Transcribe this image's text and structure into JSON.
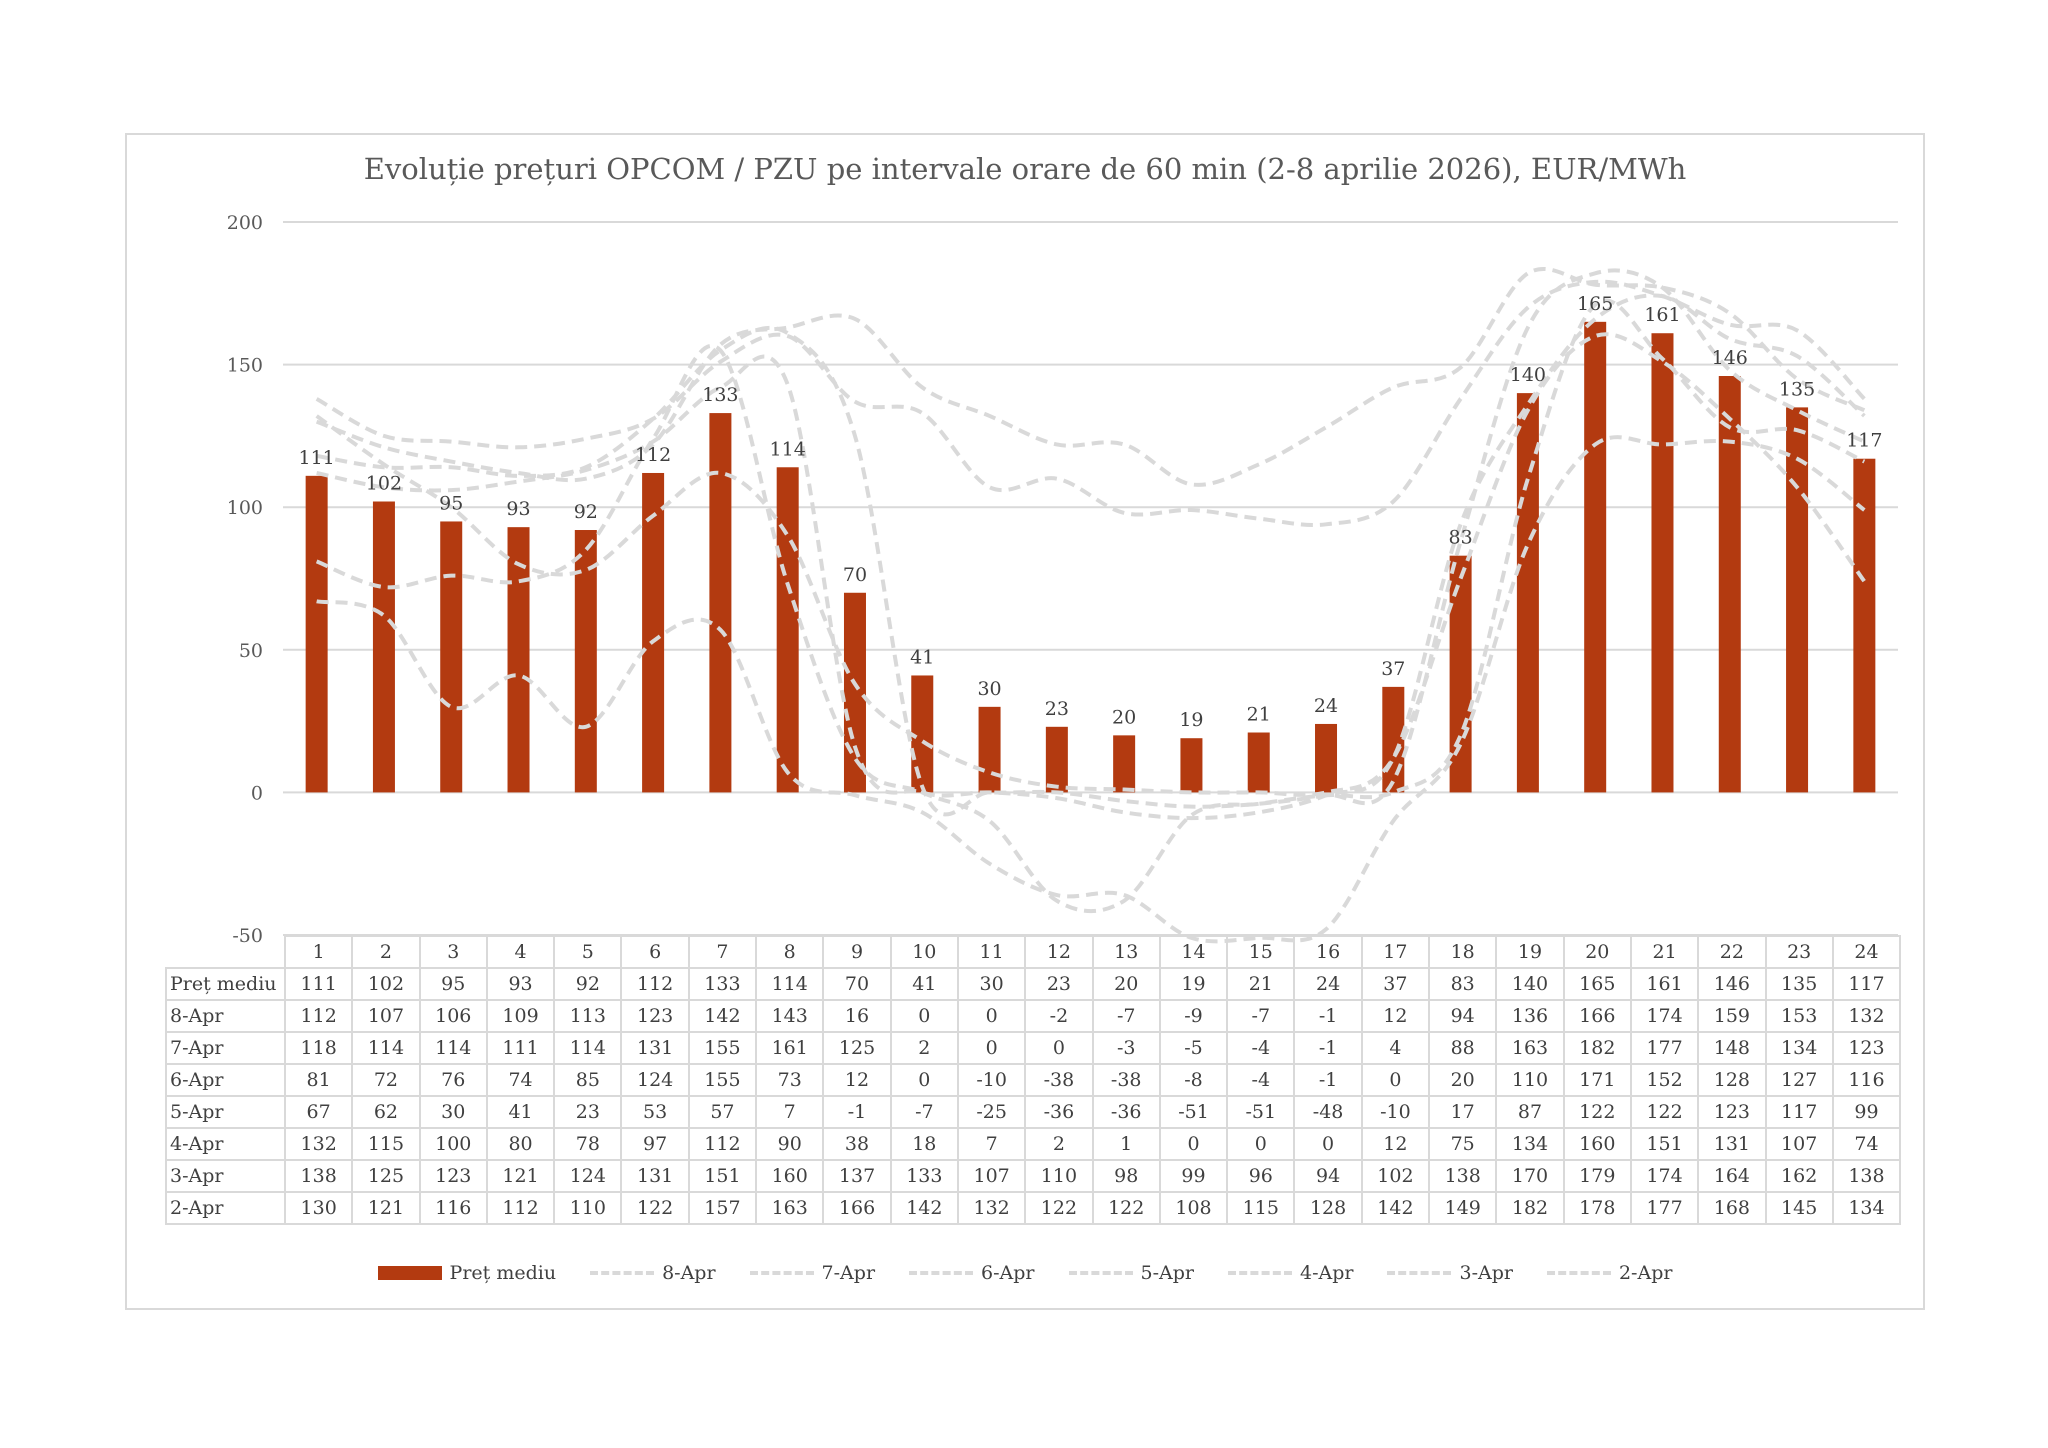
{
  "chart_data": {
    "type": "bar",
    "title": "Evoluție prețuri OPCOM / PZU pe intervale orare de 60 min (2-8 aprilie 2026), EUR/MWh",
    "xlabel": "",
    "ylabel": "",
    "ylim": [
      -50,
      200
    ],
    "yticks": [
      "200",
      "150",
      "100",
      "50",
      "0",
      "-50"
    ],
    "grid": true,
    "legend_position": "bottom",
    "colors": {
      "bar": "#b33a10",
      "lines": "#d9d9d9",
      "grid": "#d9d9d9"
    },
    "categories": [
      "1",
      "2",
      "3",
      "4",
      "5",
      "6",
      "7",
      "8",
      "9",
      "10",
      "11",
      "12",
      "13",
      "14",
      "15",
      "16",
      "17",
      "18",
      "19",
      "20",
      "21",
      "22",
      "23",
      "24"
    ],
    "series": [
      {
        "name": "Preț mediu",
        "kind": "bar",
        "values": [
          111,
          102,
          95,
          93,
          92,
          112,
          133,
          114,
          70,
          41,
          30,
          23,
          20,
          19,
          21,
          24,
          37,
          83,
          140,
          165,
          161,
          146,
          135,
          117
        ]
      },
      {
        "name": "8-Apr",
        "kind": "line",
        "values": [
          112,
          107,
          106,
          109,
          113,
          123,
          142,
          143,
          16,
          0,
          0,
          -2,
          -7,
          -9,
          -7,
          -1,
          12,
          94,
          136,
          166,
          174,
          159,
          153,
          132
        ]
      },
      {
        "name": "7-Apr",
        "kind": "line",
        "values": [
          118,
          114,
          114,
          111,
          114,
          131,
          155,
          161,
          125,
          2,
          0,
          0,
          -3,
          -5,
          -4,
          -1,
          4,
          88,
          163,
          182,
          177,
          148,
          134,
          123
        ]
      },
      {
        "name": "6-Apr",
        "kind": "line",
        "values": [
          81,
          72,
          76,
          74,
          85,
          124,
          155,
          73,
          12,
          0,
          -10,
          -38,
          -38,
          -8,
          -4,
          -1,
          0,
          20,
          110,
          171,
          152,
          128,
          127,
          116
        ]
      },
      {
        "name": "5-Apr",
        "kind": "line",
        "values": [
          67,
          62,
          30,
          41,
          23,
          53,
          57,
          7,
          -1,
          -7,
          -25,
          -36,
          -36,
          -51,
          -51,
          -48,
          -10,
          17,
          87,
          122,
          122,
          123,
          117,
          99
        ]
      },
      {
        "name": "4-Apr",
        "kind": "line",
        "values": [
          132,
          115,
          100,
          80,
          78,
          97,
          112,
          90,
          38,
          18,
          7,
          2,
          1,
          0,
          0,
          0,
          12,
          75,
          134,
          160,
          151,
          131,
          107,
          74
        ]
      },
      {
        "name": "3-Apr",
        "kind": "line",
        "values": [
          138,
          125,
          123,
          121,
          124,
          131,
          151,
          160,
          137,
          133,
          107,
          110,
          98,
          99,
          96,
          94,
          102,
          138,
          170,
          179,
          174,
          164,
          162,
          138
        ]
      },
      {
        "name": "2-Apr",
        "kind": "line",
        "values": [
          130,
          121,
          116,
          112,
          110,
          122,
          157,
          163,
          166,
          142,
          132,
          122,
          122,
          108,
          115,
          128,
          142,
          149,
          182,
          178,
          177,
          168,
          145,
          134
        ]
      }
    ]
  }
}
